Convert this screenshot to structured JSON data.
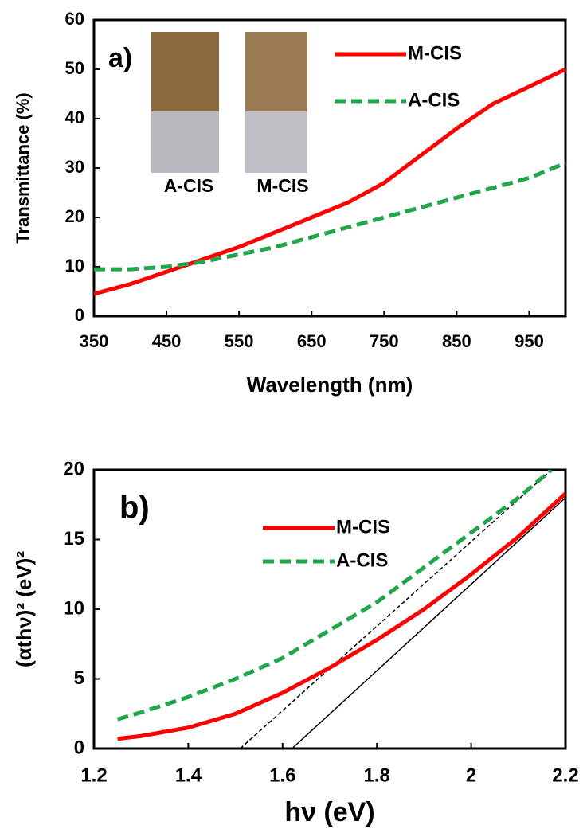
{
  "chart_data": [
    {
      "type": "line",
      "panel_label": "a)",
      "xlabel": "Wavelength (nm)",
      "ylabel": "Transmittance (%)",
      "xlim": [
        350,
        1000
      ],
      "xticks": [
        350,
        450,
        550,
        650,
        750,
        850,
        950
      ],
      "ylim": [
        0,
        60
      ],
      "yticks": [
        0,
        10,
        20,
        30,
        40,
        50,
        60
      ],
      "inset_labels": [
        "A-CIS",
        "M-CIS"
      ],
      "series": [
        {
          "name": "M-CIS",
          "color": "#ff0000",
          "dashed": false,
          "x": [
            350,
            400,
            450,
            500,
            550,
            600,
            650,
            700,
            750,
            800,
            850,
            900,
            950,
            1000
          ],
          "values": [
            4.5,
            6.5,
            9,
            11.5,
            14,
            17,
            20,
            23,
            27,
            32.5,
            38,
            43,
            46.5,
            50
          ]
        },
        {
          "name": "A-CIS",
          "color": "#21a64b",
          "dashed": true,
          "x": [
            350,
            400,
            450,
            500,
            550,
            600,
            650,
            700,
            750,
            800,
            850,
            900,
            950,
            1000
          ],
          "values": [
            9.5,
            9.5,
            10,
            11,
            12.5,
            14,
            16,
            18,
            20,
            22,
            24,
            26,
            28,
            31
          ]
        }
      ]
    },
    {
      "type": "line",
      "panel_label": "b)",
      "xlabel": "hν (eV)",
      "ylabel": "(αthν)² (eV)²",
      "xlim": [
        1.2,
        2.2
      ],
      "xticks": [
        1.2,
        1.4,
        1.6,
        1.8,
        2,
        2.2
      ],
      "ylim": [
        0,
        20
      ],
      "yticks": [
        0,
        5,
        10,
        15,
        20
      ],
      "series": [
        {
          "name": "M-CIS",
          "color": "#ff0000",
          "dashed": false,
          "x": [
            1.25,
            1.3,
            1.4,
            1.5,
            1.6,
            1.7,
            1.8,
            1.9,
            2.0,
            2.1,
            2.2
          ],
          "values": [
            0.7,
            0.9,
            1.5,
            2.5,
            4,
            5.8,
            7.8,
            10,
            12.5,
            15.2,
            18.3
          ]
        },
        {
          "name": "A-CIS",
          "color": "#21a64b",
          "dashed": true,
          "x": [
            1.25,
            1.3,
            1.4,
            1.5,
            1.6,
            1.7,
            1.8,
            1.9,
            2.0,
            2.1,
            2.17
          ],
          "values": [
            2.1,
            2.6,
            3.7,
            5,
            6.5,
            8.5,
            10.5,
            13,
            15.5,
            18,
            20
          ]
        }
      ],
      "fit_lines": [
        {
          "color": "#000000",
          "dashed": false,
          "x": [
            1.62,
            2.2
          ],
          "values": [
            0,
            18
          ]
        },
        {
          "color": "#000000",
          "dashed": true,
          "x": [
            1.51,
            2.17
          ],
          "values": [
            0,
            20
          ]
        }
      ]
    }
  ]
}
